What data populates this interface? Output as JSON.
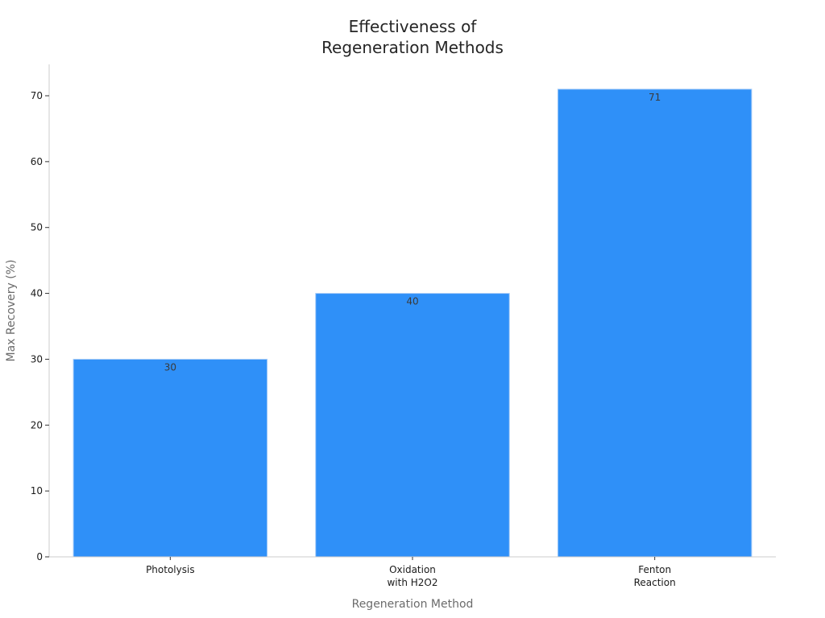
{
  "chart_data": {
    "type": "bar",
    "title": [
      "Effectiveness of",
      "Regeneration Methods"
    ],
    "xlabel": "Regeneration Method",
    "ylabel": "Max Recovery (%)",
    "categories": [
      [
        "Photolysis"
      ],
      [
        "Oxidation",
        "with H2O2"
      ],
      [
        "Fenton",
        "Reaction"
      ]
    ],
    "values": [
      30,
      40,
      71
    ],
    "data_labels": [
      "30",
      "40",
      "71"
    ],
    "yticks": [
      0,
      10,
      20,
      30,
      40,
      50,
      60,
      70
    ],
    "ylim": [
      0,
      75
    ],
    "grid": false,
    "legend": "none",
    "bar_color": "#2f90f8"
  }
}
